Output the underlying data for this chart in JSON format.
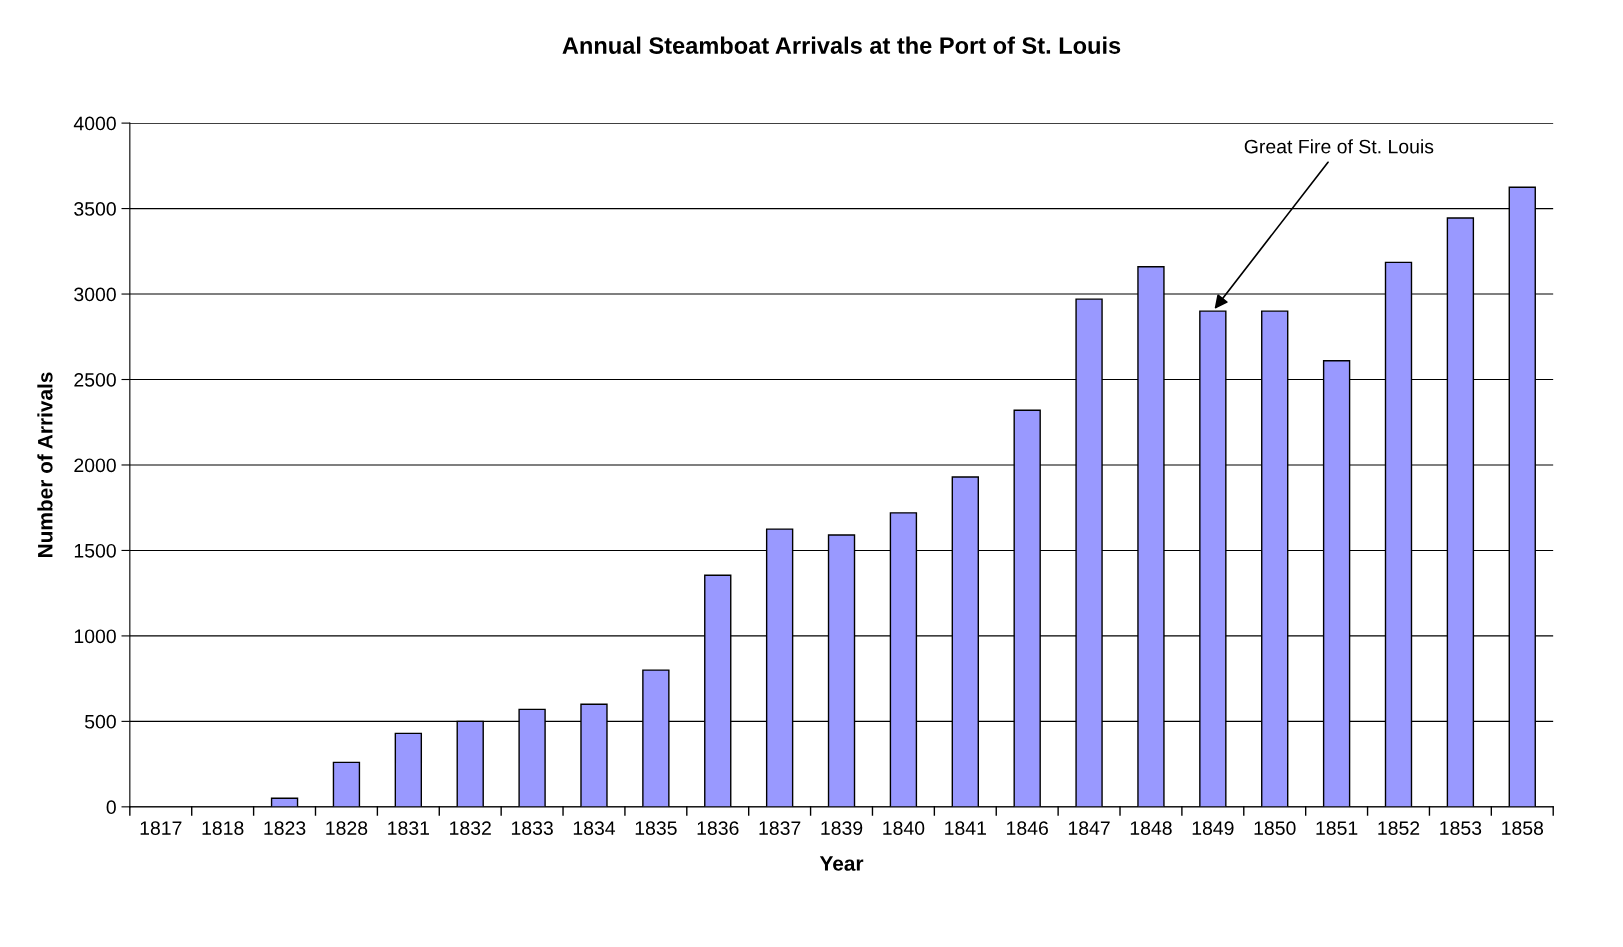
{
  "chart_data": {
    "type": "bar",
    "title": "Annual Steamboat Arrivals at the Port of St. Louis",
    "xlabel": "Year",
    "ylabel": "Number of Arrivals",
    "categories": [
      "1817",
      "1818",
      "1823",
      "1828",
      "1831",
      "1832",
      "1833",
      "1834",
      "1835",
      "1836",
      "1837",
      "1839",
      "1840",
      "1841",
      "1846",
      "1847",
      "1848",
      "1849",
      "1850",
      "1851",
      "1852",
      "1853",
      "1858"
    ],
    "values": [
      null,
      null,
      50,
      260,
      430,
      500,
      570,
      600,
      800,
      1355,
      1625,
      1590,
      1720,
      1930,
      2320,
      2970,
      3160,
      2900,
      2900,
      2610,
      3185,
      3445,
      3625
    ],
    "color": "#9999ff",
    "ylim": [
      0,
      4000
    ],
    "yticks": [
      0,
      500,
      1000,
      1500,
      2000,
      2500,
      3000,
      3500,
      4000
    ],
    "grid": "y",
    "legend": false,
    "annotations": [
      {
        "text": "Great Fire of St. Louis",
        "x": "1849",
        "y": 2900
      }
    ]
  }
}
